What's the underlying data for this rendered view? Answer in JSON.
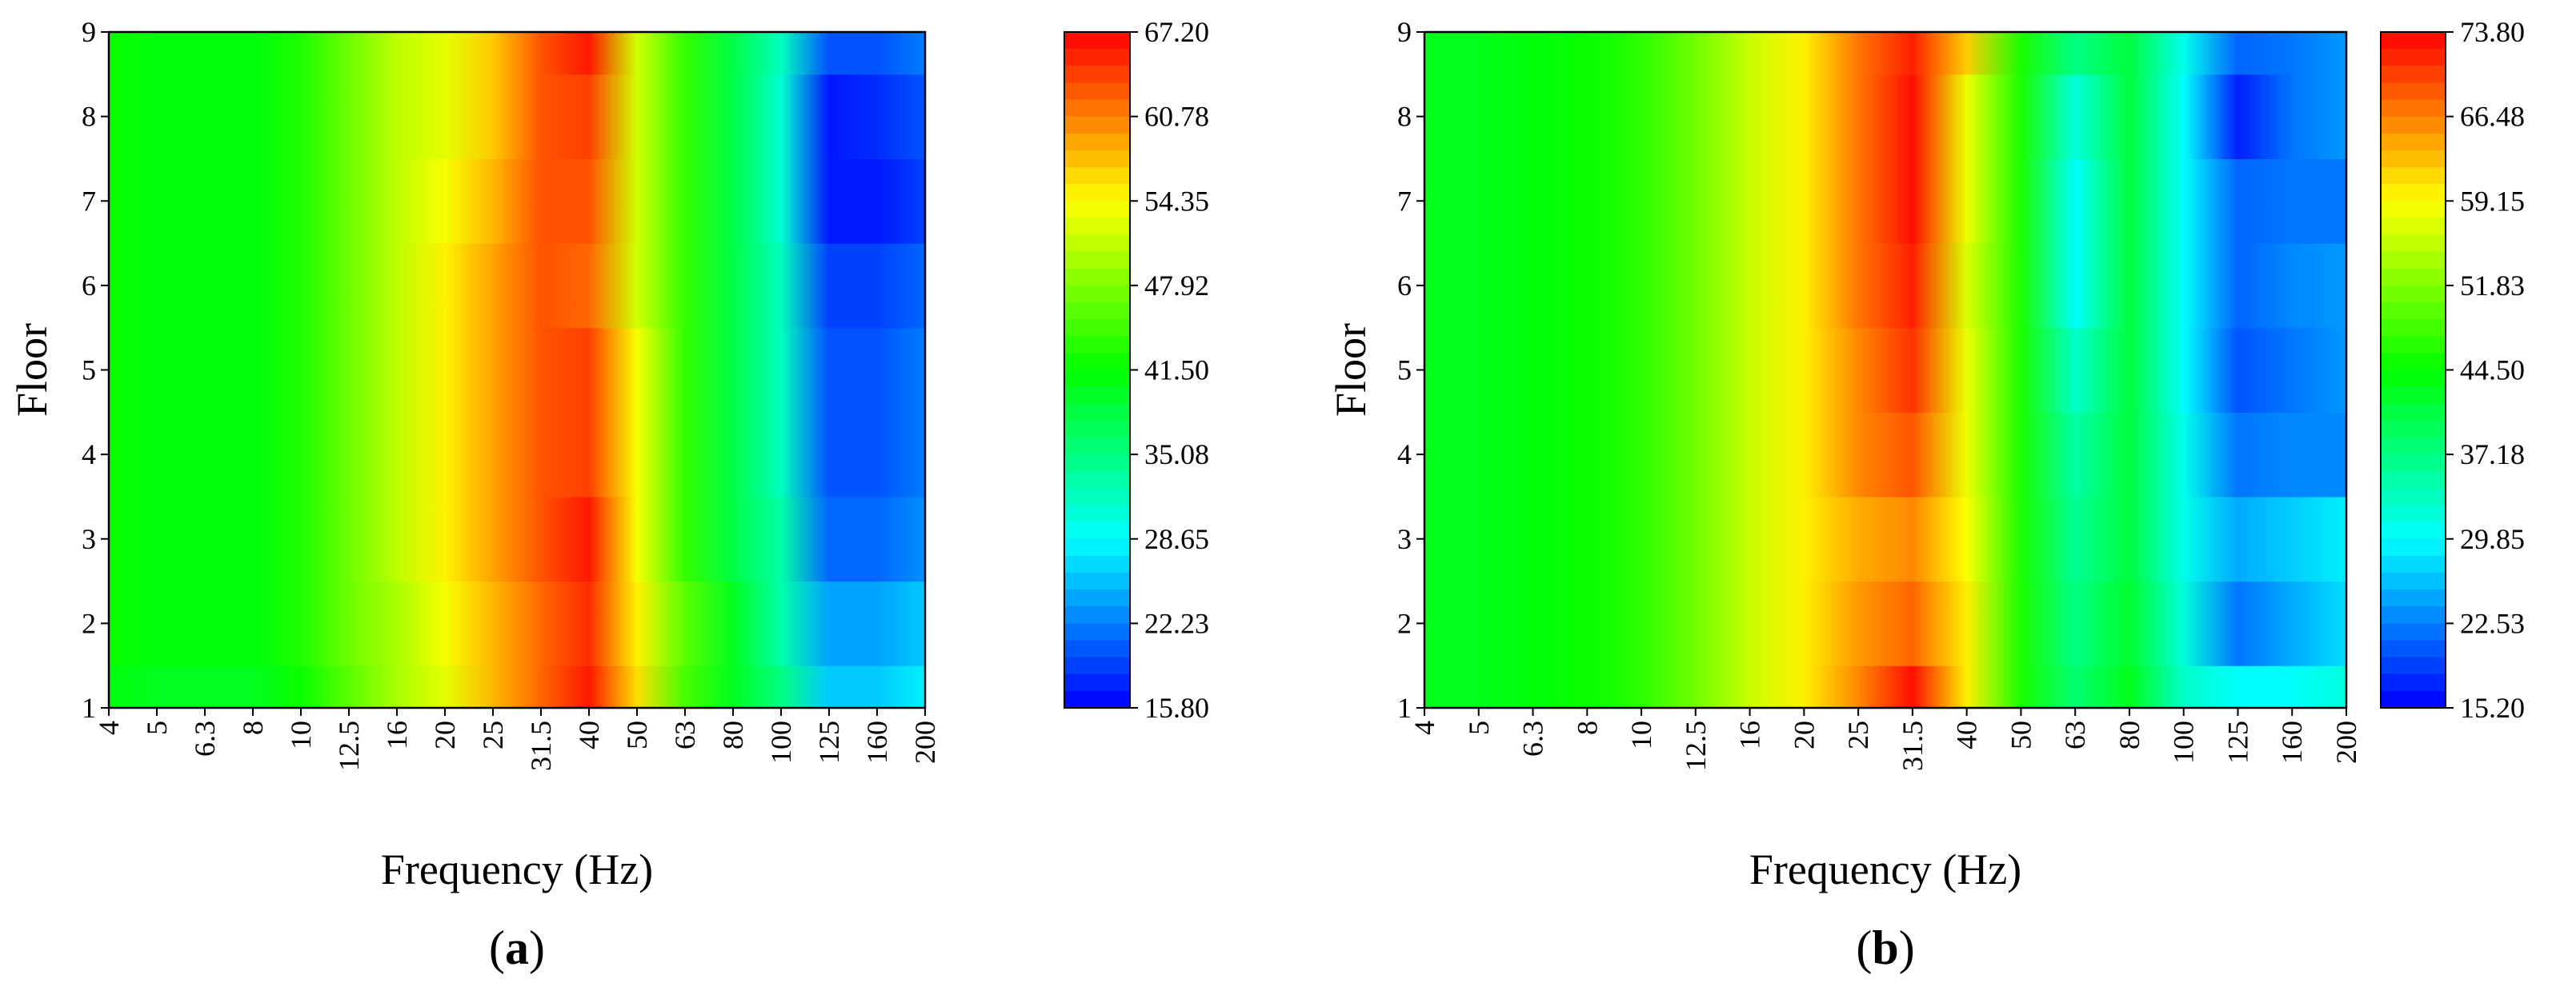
{
  "chart_data": [
    {
      "type": "heatmap",
      "panel_label": "a",
      "xlabel": "Frequency (Hz)",
      "ylabel": "Floor",
      "x_categories": [
        "4",
        "5",
        "6.3",
        "8",
        "10",
        "12.5",
        "16",
        "20",
        "25",
        "31.5",
        "40",
        "50",
        "63",
        "80",
        "100",
        "125",
        "160",
        "200"
      ],
      "y_ticks": [
        1,
        2,
        3,
        4,
        5,
        6,
        7,
        8,
        9
      ],
      "ylim": [
        1,
        9
      ],
      "colorbar_ticks": [
        "15.80",
        "22.23",
        "28.65",
        "35.08",
        "41.50",
        "47.92",
        "54.35",
        "60.78",
        "67.20"
      ],
      "zlim": [
        15.8,
        67.2
      ],
      "colorscale": [
        "#0000ff",
        "#00ffff",
        "#00ff00",
        "#ffff00",
        "#ff0000"
      ],
      "rows": [
        {
          "floor": 1,
          "values": [
            41,
            40,
            40,
            40,
            42,
            46,
            50,
            53,
            58,
            62,
            66,
            56,
            45,
            40,
            35,
            26,
            26,
            28
          ]
        },
        {
          "floor": 2,
          "values": [
            42,
            41,
            41,
            41,
            43,
            47,
            50,
            54,
            58,
            62,
            65,
            55,
            46,
            40,
            33,
            24,
            24,
            26
          ]
        },
        {
          "floor": 3,
          "values": [
            42,
            41,
            41,
            41,
            43,
            47,
            51,
            55,
            59,
            63,
            66,
            54,
            44,
            38,
            33,
            21,
            21,
            23
          ]
        },
        {
          "floor": 4,
          "values": [
            42,
            41,
            41,
            41,
            43,
            47,
            51,
            55,
            59,
            63,
            64,
            54,
            44,
            38,
            32,
            20,
            20,
            22
          ]
        },
        {
          "floor": 5,
          "values": [
            42,
            41,
            41,
            41,
            43,
            47,
            51,
            55,
            59,
            63,
            64,
            54,
            44,
            38,
            32,
            20,
            20,
            22
          ]
        },
        {
          "floor": 6,
          "values": [
            42,
            41,
            41,
            41,
            43,
            47,
            51,
            55,
            59,
            63,
            62,
            52,
            44,
            38,
            32,
            19,
            19,
            21
          ]
        },
        {
          "floor": 7,
          "values": [
            42,
            41,
            41,
            41,
            43,
            47,
            51,
            54,
            58,
            63,
            63,
            52,
            44,
            38,
            31,
            17,
            17,
            19
          ]
        },
        {
          "floor": 8,
          "values": [
            42,
            41,
            41,
            41,
            43,
            47,
            51,
            53,
            57,
            63,
            64,
            52,
            44,
            38,
            31,
            17,
            18,
            20
          ]
        },
        {
          "floor": 9,
          "values": [
            42,
            41,
            41,
            41,
            43,
            47,
            51,
            53,
            57,
            63,
            66,
            52,
            44,
            38,
            32,
            20,
            20,
            22
          ]
        }
      ]
    },
    {
      "type": "heatmap",
      "panel_label": "b",
      "xlabel": "Frequency (Hz)",
      "ylabel": "Floor",
      "x_categories": [
        "4",
        "5",
        "6.3",
        "8",
        "10",
        "12.5",
        "16",
        "20",
        "25",
        "31.5",
        "40",
        "50",
        "63",
        "80",
        "100",
        "125",
        "160",
        "200"
      ],
      "y_ticks": [
        1,
        2,
        3,
        4,
        5,
        6,
        7,
        8,
        9
      ],
      "ylim": [
        1,
        9
      ],
      "colorbar_ticks": [
        "15.20",
        "22.53",
        "29.85",
        "37.18",
        "44.50",
        "51.83",
        "59.15",
        "66.48",
        "73.80"
      ],
      "zlim": [
        15.2,
        73.8
      ],
      "colorscale": [
        "#0000ff",
        "#00ffff",
        "#00ff00",
        "#ffff00",
        "#ff0000"
      ],
      "rows": [
        {
          "floor": 1,
          "values": [
            43,
            43,
            44,
            45,
            47,
            51,
            56,
            60,
            66,
            73,
            60,
            46,
            38,
            43,
            33,
            30,
            30,
            32
          ]
        },
        {
          "floor": 2,
          "values": [
            43,
            43,
            44,
            45,
            47,
            51,
            56,
            60,
            65,
            68,
            60,
            46,
            37,
            42,
            32,
            22,
            25,
            28
          ]
        },
        {
          "floor": 3,
          "values": [
            43,
            43,
            44,
            45,
            47,
            51,
            56,
            60,
            64,
            66,
            59,
            46,
            36,
            41,
            31,
            25,
            27,
            29
          ]
        },
        {
          "floor": 4,
          "values": [
            43,
            43,
            44,
            45,
            47,
            51,
            56,
            60,
            66,
            69,
            58,
            46,
            35,
            41,
            31,
            22,
            23,
            23
          ]
        },
        {
          "floor": 5,
          "values": [
            43,
            43,
            44,
            45,
            47,
            51,
            56,
            60,
            66,
            71,
            58,
            46,
            33,
            41,
            30,
            20,
            22,
            24
          ]
        },
        {
          "floor": 6,
          "values": [
            43,
            43,
            44,
            45,
            47,
            51,
            56,
            60,
            67,
            72,
            57,
            46,
            30,
            41,
            30,
            21,
            23,
            24
          ]
        },
        {
          "floor": 7,
          "values": [
            43,
            43,
            44,
            45,
            47,
            51,
            56,
            60,
            67,
            73,
            58,
            46,
            30,
            41,
            30,
            21,
            22,
            22
          ]
        },
        {
          "floor": 8,
          "values": [
            43,
            43,
            44,
            45,
            47,
            51,
            56,
            60,
            67,
            73,
            58,
            46,
            32,
            41,
            30,
            17,
            22,
            24
          ]
        },
        {
          "floor": 9,
          "values": [
            43,
            43,
            44,
            45,
            47,
            51,
            56,
            60,
            67,
            72,
            62,
            46,
            37,
            41,
            31,
            21,
            22,
            24
          ]
        }
      ]
    }
  ]
}
